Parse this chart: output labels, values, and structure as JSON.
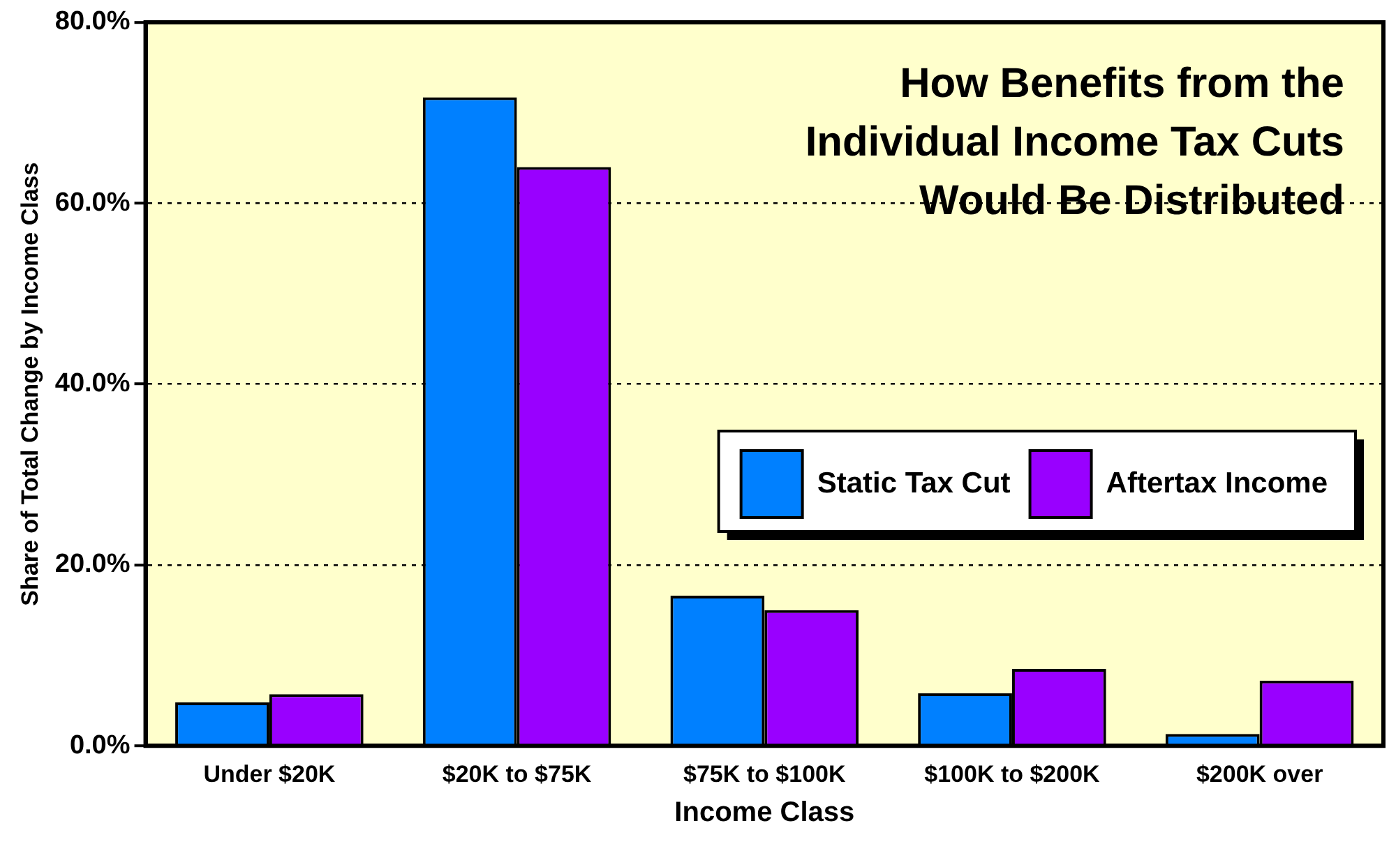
{
  "chart_data": {
    "type": "bar",
    "title": "How Benefits from the Individual Income Tax Cuts Would Be Distributed",
    "xlabel": "Income Class",
    "ylabel": "Share of Total Change by Income Class",
    "categories": [
      "Under $20K",
      "$20K to $75K",
      "$75K to $100K",
      "$100K to $200K",
      "$200K over"
    ],
    "series": [
      {
        "name": "Static Tax Cut",
        "color": "#0080ff",
        "values": [
          4.8,
          71.7,
          16.6,
          5.8,
          1.3
        ]
      },
      {
        "name": "Aftertax Income",
        "color": "#9900ff",
        "values": [
          5.7,
          64.0,
          15.0,
          8.5,
          7.2
        ]
      }
    ],
    "ylim": [
      0,
      80
    ],
    "yticks": [
      {
        "value": 0,
        "label": "0.0%"
      },
      {
        "value": 20,
        "label": "20.0%"
      },
      {
        "value": 40,
        "label": "40.0%"
      },
      {
        "value": 60,
        "label": "60.0%"
      },
      {
        "value": 80,
        "label": "80.0%"
      }
    ],
    "grid": "y",
    "legend": "right"
  }
}
